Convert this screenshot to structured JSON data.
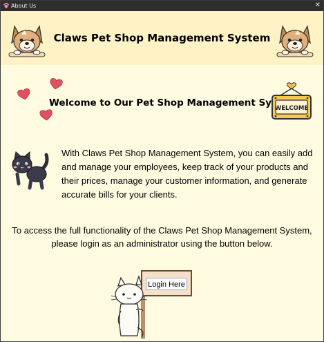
{
  "window": {
    "title": "About Us",
    "close_glyph": "✕",
    "icons": {
      "app": "paw-icon",
      "close": "close-icon"
    }
  },
  "header": {
    "title": "Claws Pet Shop Management System",
    "left_icon": "dog-icon",
    "right_icon": "dog-icon"
  },
  "main": {
    "welcome_title": "Welcome to Our Pet Shop Management System",
    "welcome_sign_text": "WELCOME",
    "description": "With Claws Pet Shop Management System, you can easily add and manage your employees, keep track of your products and their prices, manage your customer information, and generate accurate bills for your clients.",
    "access_note": "To access the full functionality of the Claws Pet Shop Management System, please login as an administrator using the button below.",
    "login_button": "Login Here",
    "decorations": [
      "heart-icon",
      "welcome-sign-icon",
      "black-cat-icon",
      "cat-holding-sign-icon"
    ]
  },
  "colors": {
    "background": "#fffbe0",
    "header_background": "#fff3c6",
    "titlebar": "#2e2e2e",
    "heart": "#e05060",
    "button_border": "#8aa9c9"
  }
}
